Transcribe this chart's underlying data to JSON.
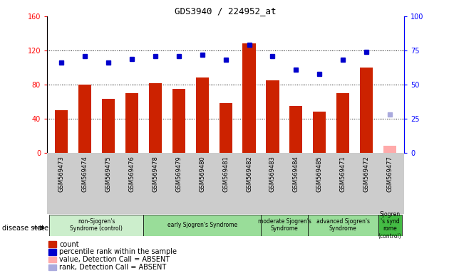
{
  "title": "GDS3940 / 224952_at",
  "samples": [
    "GSM569473",
    "GSM569474",
    "GSM569475",
    "GSM569476",
    "GSM569478",
    "GSM569479",
    "GSM569480",
    "GSM569481",
    "GSM569482",
    "GSM569483",
    "GSM569484",
    "GSM569485",
    "GSM569471",
    "GSM569472",
    "GSM569477"
  ],
  "count_values": [
    50,
    80,
    63,
    70,
    82,
    75,
    88,
    58,
    128,
    85,
    55,
    48,
    70,
    100,
    8
  ],
  "rank_values": [
    66,
    71,
    66,
    69,
    71,
    71,
    72,
    68,
    79,
    71,
    61,
    58,
    68,
    74,
    28
  ],
  "absent_mask": [
    false,
    false,
    false,
    false,
    false,
    false,
    false,
    false,
    false,
    false,
    false,
    false,
    false,
    false,
    true
  ],
  "groups": [
    {
      "label": "non-Sjogren's\nSyndrome (control)",
      "color": "#cceecc",
      "start": 0,
      "end": 4
    },
    {
      "label": "early Sjogren's Syndrome",
      "color": "#99dd99",
      "start": 4,
      "end": 9
    },
    {
      "label": "moderate Sjogren's\nSyndrome",
      "color": "#99dd99",
      "start": 9,
      "end": 11
    },
    {
      "label": "advanced Sjogren's\nSyndrome",
      "color": "#99dd99",
      "start": 11,
      "end": 14
    },
    {
      "label": "Sjogren\n's synd\nrome\n(control)",
      "color": "#44bb44",
      "start": 14,
      "end": 15
    }
  ],
  "bar_color": "#cc2200",
  "bar_color_absent": "#ffaaaa",
  "dot_color": "#0000cc",
  "dot_color_absent": "#aaaadd",
  "ylim_left": [
    0,
    160
  ],
  "ylim_right": [
    0,
    100
  ],
  "yticks_left": [
    0,
    40,
    80,
    120,
    160
  ],
  "yticks_right": [
    0,
    25,
    50,
    75,
    100
  ],
  "disease_state_label": "disease state",
  "legend_items": [
    {
      "label": "count",
      "color": "#cc2200"
    },
    {
      "label": "percentile rank within the sample",
      "color": "#0000cc"
    },
    {
      "label": "value, Detection Call = ABSENT",
      "color": "#ffaaaa"
    },
    {
      "label": "rank, Detection Call = ABSENT",
      "color": "#aaaadd"
    }
  ]
}
